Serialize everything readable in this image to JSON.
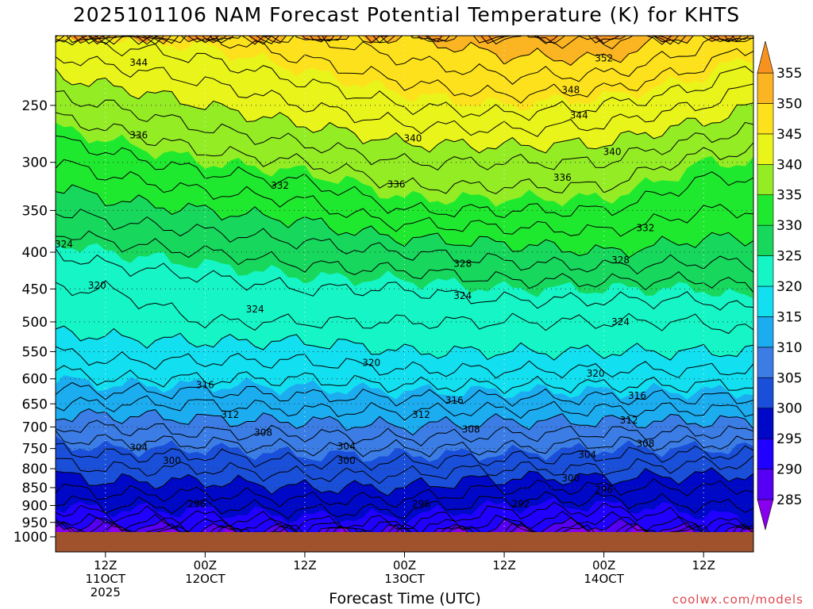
{
  "chart_data": {
    "type": "heatmap",
    "title": "2025101106 NAM Forecast Potential Temperature (K) for KHTS",
    "xlabel": "Forecast Time (UTC)",
    "ylabel": "",
    "credit": "coolwx.com/models",
    "x_ticks": [
      {
        "lines": [
          "12Z",
          "11OCT",
          "2025"
        ],
        "hour": 12
      },
      {
        "lines": [
          "00Z",
          "12OCT"
        ],
        "hour": 24
      },
      {
        "lines": [
          "12Z"
        ],
        "hour": 36
      },
      {
        "lines": [
          "00Z",
          "13OCT"
        ],
        "hour": 48
      },
      {
        "lines": [
          "12Z"
        ],
        "hour": 60
      },
      {
        "lines": [
          "00Z",
          "14OCT"
        ],
        "hour": 72
      },
      {
        "lines": [
          "12Z"
        ],
        "hour": 84
      }
    ],
    "xlim_hours": [
      6,
      90
    ],
    "pressure_ticks": [
      250,
      300,
      350,
      400,
      450,
      500,
      550,
      600,
      650,
      700,
      750,
      800,
      850,
      900,
      950,
      1000
    ],
    "ylim_hPa": [
      200,
      1000
    ],
    "y_scale": "log",
    "surface_pressure_hPa": 980,
    "colorbar_levels": [
      285,
      290,
      295,
      300,
      305,
      310,
      315,
      320,
      325,
      330,
      335,
      340,
      345,
      350,
      355
    ],
    "colorbar_colors": [
      "#8800ee",
      "#5500f5",
      "#2000ff",
      "#0008c8",
      "#1a4fd9",
      "#3b7de5",
      "#1cadf0",
      "#12dfef",
      "#15f5c6",
      "#17d85d",
      "#1fe92e",
      "#94ec25",
      "#e9f41a",
      "#fde11c",
      "#fbb422",
      "#f7921f"
    ],
    "isotherm_profiles": {
      "pressure_hPa": [
        980,
        950,
        900,
        850,
        800,
        750,
        700,
        650,
        600,
        550,
        500,
        450,
        400,
        350,
        300,
        250,
        200
      ],
      "hours": [
        6,
        12,
        24,
        36,
        48,
        60,
        72,
        84,
        90
      ],
      "theta_K": [
        [
          284,
          291,
          295,
          298,
          301,
          304,
          308,
          312,
          315,
          318,
          321,
          322,
          324,
          328,
          332,
          337,
          344
        ],
        [
          286,
          292,
          296,
          299,
          302,
          305,
          308,
          312,
          316,
          319,
          321,
          322,
          325,
          329,
          333,
          338,
          345
        ],
        [
          289,
          293,
          296,
          299,
          302,
          305,
          309,
          312,
          316,
          319,
          322,
          323,
          326,
          330,
          335,
          340,
          346
        ],
        [
          290,
          294,
          297,
          300,
          303,
          306,
          309,
          313,
          316,
          319,
          322,
          324,
          327,
          331,
          336,
          342,
          348
        ],
        [
          291,
          294,
          297,
          300,
          303,
          306,
          310,
          313,
          317,
          320,
          322,
          324,
          328,
          334,
          338,
          344,
          350
        ],
        [
          288,
          292,
          295,
          298,
          302,
          306,
          309,
          313,
          317,
          320,
          322,
          325,
          329,
          334,
          338,
          345,
          352
        ],
        [
          287,
          291,
          295,
          298,
          302,
          305,
          309,
          313,
          317,
          320,
          322,
          325,
          330,
          334,
          338,
          344,
          353
        ],
        [
          290,
          294,
          296,
          298,
          301,
          305,
          309,
          313,
          317,
          320,
          322,
          325,
          329,
          332,
          335,
          342,
          349
        ],
        [
          291,
          295,
          296,
          298,
          301,
          305,
          309,
          313,
          317,
          320,
          323,
          326,
          329,
          332,
          335,
          340,
          347
        ]
      ]
    },
    "contour_labels": [
      {
        "text": "344",
        "hour": 16,
        "p": 218
      },
      {
        "text": "336",
        "hour": 16,
        "p": 275
      },
      {
        "text": "332",
        "hour": 33,
        "p": 323
      },
      {
        "text": "324",
        "hour": 7,
        "p": 390
      },
      {
        "text": "320",
        "hour": 11,
        "p": 445
      },
      {
        "text": "324",
        "hour": 30,
        "p": 480
      },
      {
        "text": "316",
        "hour": 24,
        "p": 612
      },
      {
        "text": "312",
        "hour": 27,
        "p": 673
      },
      {
        "text": "308",
        "hour": 31,
        "p": 713
      },
      {
        "text": "304",
        "hour": 16,
        "p": 748
      },
      {
        "text": "300",
        "hour": 20,
        "p": 780
      },
      {
        "text": "296",
        "hour": 23,
        "p": 895
      },
      {
        "text": "320",
        "hour": 44,
        "p": 570
      },
      {
        "text": "316",
        "hour": 54,
        "p": 643
      },
      {
        "text": "312",
        "hour": 50,
        "p": 673
      },
      {
        "text": "308",
        "hour": 56,
        "p": 705
      },
      {
        "text": "304",
        "hour": 41,
        "p": 745
      },
      {
        "text": "300",
        "hour": 41,
        "p": 780
      },
      {
        "text": "296",
        "hour": 50,
        "p": 895
      },
      {
        "text": "292",
        "hour": 62,
        "p": 895
      },
      {
        "text": "340",
        "hour": 49,
        "p": 278
      },
      {
        "text": "336",
        "hour": 47,
        "p": 322
      },
      {
        "text": "328",
        "hour": 55,
        "p": 415
      },
      {
        "text": "324",
        "hour": 55,
        "p": 460
      },
      {
        "text": "352",
        "hour": 72,
        "p": 215
      },
      {
        "text": "348",
        "hour": 68,
        "p": 238
      },
      {
        "text": "344",
        "hour": 69,
        "p": 258
      },
      {
        "text": "340",
        "hour": 73,
        "p": 290
      },
      {
        "text": "336",
        "hour": 67,
        "p": 315
      },
      {
        "text": "332",
        "hour": 77,
        "p": 370
      },
      {
        "text": "328",
        "hour": 74,
        "p": 410
      },
      {
        "text": "324",
        "hour": 74,
        "p": 500
      },
      {
        "text": "320",
        "hour": 71,
        "p": 590
      },
      {
        "text": "316",
        "hour": 76,
        "p": 633
      },
      {
        "text": "312",
        "hour": 75,
        "p": 685
      },
      {
        "text": "308",
        "hour": 77,
        "p": 738
      },
      {
        "text": "304",
        "hour": 70,
        "p": 765
      },
      {
        "text": "300",
        "hour": 68,
        "p": 825
      },
      {
        "text": "296",
        "hour": 72,
        "p": 855
      }
    ]
  }
}
